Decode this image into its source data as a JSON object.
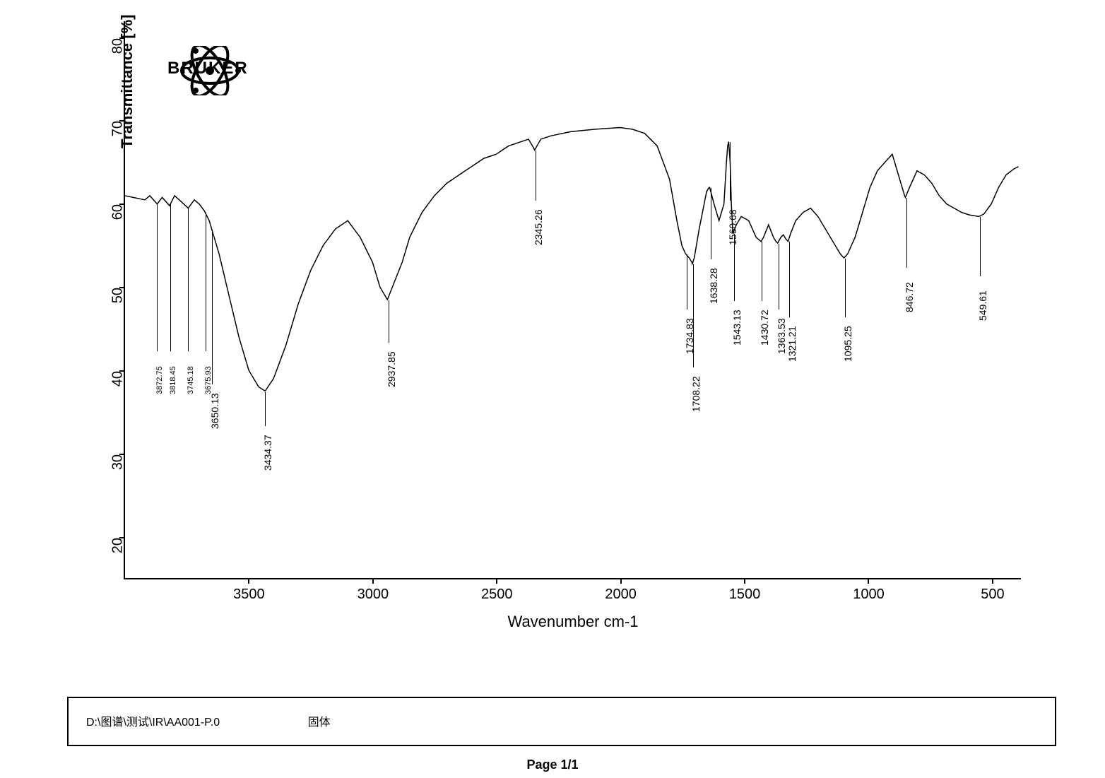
{
  "chart": {
    "type": "line",
    "y_label": "Transmittance [%]",
    "x_label": "Wavenumber cm-1",
    "ylim": [
      15,
      82
    ],
    "xlim": [
      4000,
      380
    ],
    "y_ticks": [
      20,
      30,
      40,
      50,
      60,
      70,
      80
    ],
    "x_ticks": [
      3500,
      3000,
      2500,
      2000,
      1500,
      1000,
      500
    ],
    "line_color": "#000000",
    "line_width": 1.5,
    "background_color": "#ffffff",
    "axis_color": "#000000",
    "tick_fontsize": 20,
    "label_fontsize": 22,
    "peak_fontsize": 14,
    "spectrum_points": [
      [
        4000,
        61
      ],
      [
        3920,
        60.5
      ],
      [
        3900,
        61
      ],
      [
        3870,
        60
      ],
      [
        3850,
        60.8
      ],
      [
        3820,
        59.8
      ],
      [
        3800,
        61
      ],
      [
        3770,
        60.2
      ],
      [
        3745,
        59.5
      ],
      [
        3720,
        60.5
      ],
      [
        3700,
        60
      ],
      [
        3680,
        59.2
      ],
      [
        3660,
        58
      ],
      [
        3650,
        57
      ],
      [
        3620,
        54
      ],
      [
        3580,
        49
      ],
      [
        3540,
        44
      ],
      [
        3500,
        40
      ],
      [
        3460,
        38
      ],
      [
        3434,
        37.5
      ],
      [
        3400,
        39
      ],
      [
        3350,
        43
      ],
      [
        3300,
        48
      ],
      [
        3250,
        52
      ],
      [
        3200,
        55
      ],
      [
        3150,
        57
      ],
      [
        3100,
        58
      ],
      [
        3050,
        56
      ],
      [
        3000,
        53
      ],
      [
        2970,
        50
      ],
      [
        2940,
        48.5
      ],
      [
        2920,
        50
      ],
      [
        2880,
        53
      ],
      [
        2850,
        56
      ],
      [
        2800,
        59
      ],
      [
        2750,
        61
      ],
      [
        2700,
        62.5
      ],
      [
        2650,
        63.5
      ],
      [
        2600,
        64.5
      ],
      [
        2550,
        65.5
      ],
      [
        2500,
        66
      ],
      [
        2450,
        67
      ],
      [
        2400,
        67.5
      ],
      [
        2370,
        67.8
      ],
      [
        2350,
        66.8
      ],
      [
        2345,
        66.5
      ],
      [
        2320,
        67.8
      ],
      [
        2280,
        68.2
      ],
      [
        2200,
        68.7
      ],
      [
        2100,
        69
      ],
      [
        2000,
        69.2
      ],
      [
        1950,
        69
      ],
      [
        1900,
        68.5
      ],
      [
        1850,
        67
      ],
      [
        1800,
        63
      ],
      [
        1770,
        58
      ],
      [
        1750,
        55
      ],
      [
        1735,
        54
      ],
      [
        1720,
        53.5
      ],
      [
        1710,
        53
      ],
      [
        1708,
        52.8
      ],
      [
        1700,
        53.5
      ],
      [
        1680,
        57
      ],
      [
        1660,
        60
      ],
      [
        1650,
        61.5
      ],
      [
        1640,
        62
      ],
      [
        1638,
        62
      ],
      [
        1620,
        60
      ],
      [
        1600,
        58
      ],
      [
        1580,
        60
      ],
      [
        1570,
        65
      ],
      [
        1565,
        67
      ],
      [
        1561,
        67.5
      ],
      [
        1555,
        65
      ],
      [
        1550,
        60
      ],
      [
        1545,
        57
      ],
      [
        1543,
        56.5
      ],
      [
        1530,
        57.5
      ],
      [
        1510,
        58.5
      ],
      [
        1480,
        58
      ],
      [
        1450,
        56
      ],
      [
        1430,
        55.5
      ],
      [
        1420,
        56
      ],
      [
        1400,
        57.5
      ],
      [
        1380,
        56
      ],
      [
        1370,
        55.5
      ],
      [
        1363,
        55.3
      ],
      [
        1350,
        56
      ],
      [
        1340,
        56.3
      ],
      [
        1330,
        55.8
      ],
      [
        1321,
        55.5
      ],
      [
        1310,
        56.5
      ],
      [
        1290,
        58
      ],
      [
        1260,
        59
      ],
      [
        1230,
        59.5
      ],
      [
        1200,
        58.5
      ],
      [
        1170,
        57
      ],
      [
        1140,
        55.5
      ],
      [
        1110,
        54
      ],
      [
        1095,
        53.5
      ],
      [
        1080,
        54
      ],
      [
        1050,
        56
      ],
      [
        1020,
        59
      ],
      [
        990,
        62
      ],
      [
        960,
        64
      ],
      [
        930,
        65
      ],
      [
        900,
        66
      ],
      [
        870,
        63
      ],
      [
        850,
        61
      ],
      [
        847,
        60.8
      ],
      [
        830,
        62
      ],
      [
        800,
        64
      ],
      [
        770,
        63.5
      ],
      [
        740,
        62.5
      ],
      [
        710,
        61
      ],
      [
        680,
        60
      ],
      [
        650,
        59.5
      ],
      [
        620,
        59
      ],
      [
        590,
        58.7
      ],
      [
        570,
        58.6
      ],
      [
        550,
        58.5
      ],
      [
        530,
        58.8
      ],
      [
        500,
        60
      ],
      [
        470,
        62
      ],
      [
        440,
        63.5
      ],
      [
        410,
        64.2
      ],
      [
        390,
        64.5
      ]
    ],
    "peaks": [
      {
        "wn": 3872.75,
        "t": 60,
        "label_t": 42,
        "cluster": true
      },
      {
        "wn": 3818.45,
        "t": 60,
        "label_t": 42,
        "cluster": true
      },
      {
        "wn": 3745.18,
        "t": 59.5,
        "label_t": 42,
        "cluster": true
      },
      {
        "wn": 3675.93,
        "t": 59,
        "label_t": 42,
        "cluster": true
      },
      {
        "wn": 3650.13,
        "t": 57,
        "label_t": 38
      },
      {
        "wn": 3434.37,
        "t": 37.5,
        "label_t": 33
      },
      {
        "wn": 2937.85,
        "t": 48.5,
        "label_t": 43
      },
      {
        "wn": 2345.26,
        "t": 66.5,
        "label_t": 60
      },
      {
        "wn": 1734.83,
        "t": 54,
        "label_t": 47
      },
      {
        "wn": 1708.22,
        "t": 52.8,
        "label_t": 40
      },
      {
        "wn": 1638.28,
        "t": 62,
        "label_t": 53
      },
      {
        "wn": 1560.68,
        "t": 67.5,
        "label_t": 60
      },
      {
        "wn": 1543.13,
        "t": 56.5,
        "label_t": 48
      },
      {
        "wn": 1430.72,
        "t": 55.5,
        "label_t": 48
      },
      {
        "wn": 1363.53,
        "t": 55.3,
        "label_t": 47
      },
      {
        "wn": 1321.21,
        "t": 55.5,
        "label_t": 46
      },
      {
        "wn": 1095.25,
        "t": 53.5,
        "label_t": 46
      },
      {
        "wn": 846.72,
        "t": 60.8,
        "label_t": 52
      },
      {
        "wn": 549.61,
        "t": 58.5,
        "label_t": 51
      }
    ]
  },
  "logo": {
    "text": "BRUKER"
  },
  "info": {
    "path": "D:\\图谱\\测试\\IR\\AA001-P.0",
    "description": "固体"
  },
  "page": "Page 1/1"
}
